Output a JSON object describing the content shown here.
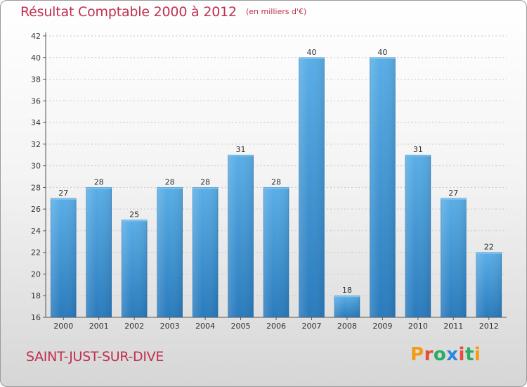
{
  "header": {
    "title": "Résultat Comptable 2000 à 2012",
    "unit": "(en milliers d'€)"
  },
  "footer": {
    "commune": "SAINT-JUST-SUR-DIVE",
    "logo_letters": [
      "P",
      "r",
      "o",
      "x",
      "i",
      "t",
      "i"
    ],
    "logo_colors": [
      "#f39c12",
      "#e74c3c",
      "#27ae60",
      "#2e86de",
      "#e74c3c",
      "#27ae60",
      "#f39c12"
    ]
  },
  "chart_data": {
    "type": "bar",
    "title": "Résultat Comptable 2000 à 2012",
    "subtitle": "(en milliers d'€)",
    "xlabel": "",
    "ylabel": "",
    "categories": [
      "2000",
      "2001",
      "2002",
      "2003",
      "2004",
      "2005",
      "2006",
      "2007",
      "2008",
      "2009",
      "2010",
      "2011",
      "2012"
    ],
    "values": [
      27,
      28,
      25,
      28,
      28,
      31,
      28,
      40,
      18,
      40,
      31,
      27,
      22
    ],
    "ylim": [
      16,
      42
    ],
    "yticks": [
      16,
      18,
      20,
      22,
      24,
      26,
      28,
      30,
      32,
      34,
      36,
      38,
      40,
      42
    ],
    "grid": true,
    "bar_color": "#4aa3e0"
  }
}
